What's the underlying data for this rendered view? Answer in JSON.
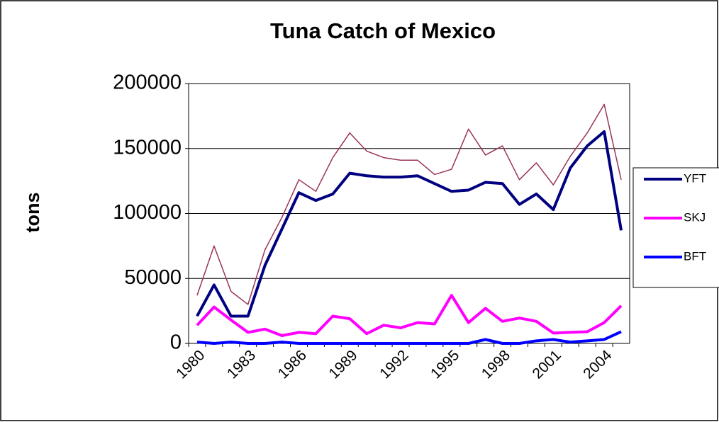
{
  "chart_data": {
    "type": "line",
    "title": "Tuna Catch of Mexico",
    "y_label": "tons",
    "categories": [
      "1980",
      null,
      null,
      "1983",
      null,
      null,
      "1986",
      null,
      null,
      "1989",
      null,
      null,
      "1992",
      null,
      null,
      "1995",
      null,
      null,
      "1998",
      null,
      null,
      "2001",
      null,
      null,
      "2004",
      null
    ],
    "series": [
      {
        "name": "YFT",
        "color": "#000080",
        "width": 4,
        "values": [
          21000,
          45000,
          21000,
          21000,
          60000,
          88000,
          116000,
          110000,
          115000,
          131000,
          129000,
          128000,
          128000,
          129000,
          123000,
          117000,
          118000,
          124000,
          123000,
          107000,
          115000,
          103000,
          135000,
          152000,
          163000,
          87000
        ]
      },
      {
        "name": "SKJ",
        "color": "#ff00ff",
        "width": 4,
        "values": [
          14000,
          28000,
          18000,
          8500,
          11000,
          6000,
          8500,
          7500,
          21000,
          19000,
          7500,
          14000,
          12000,
          16000,
          15000,
          37000,
          16000,
          27000,
          17000,
          19500,
          17000,
          8000,
          8500,
          9000,
          16000,
          29000
        ]
      },
      {
        "name": "BFT",
        "color": "#0000ff",
        "width": 4,
        "values": [
          1000,
          0,
          1000,
          0,
          0,
          1000,
          0,
          0,
          0,
          0,
          0,
          0,
          0,
          0,
          0,
          0,
          0,
          3000,
          0,
          0,
          2000,
          3000,
          1000,
          2000,
          3000,
          9000
        ]
      },
      {
        "color": "#993355",
        "width": 1.5,
        "values": [
          37000,
          75000,
          40000,
          30000,
          72000,
          97000,
          126000,
          117000,
          143000,
          162000,
          148000,
          143000,
          141000,
          141000,
          130000,
          134000,
          165000,
          145000,
          152000,
          126000,
          139000,
          122000,
          144000,
          162000,
          184000,
          126000
        ]
      }
    ],
    "ylim": [
      0,
      200000
    ],
    "yticks": [
      0,
      50000,
      100000,
      150000,
      200000
    ],
    "grid": true,
    "legend": "right"
  }
}
